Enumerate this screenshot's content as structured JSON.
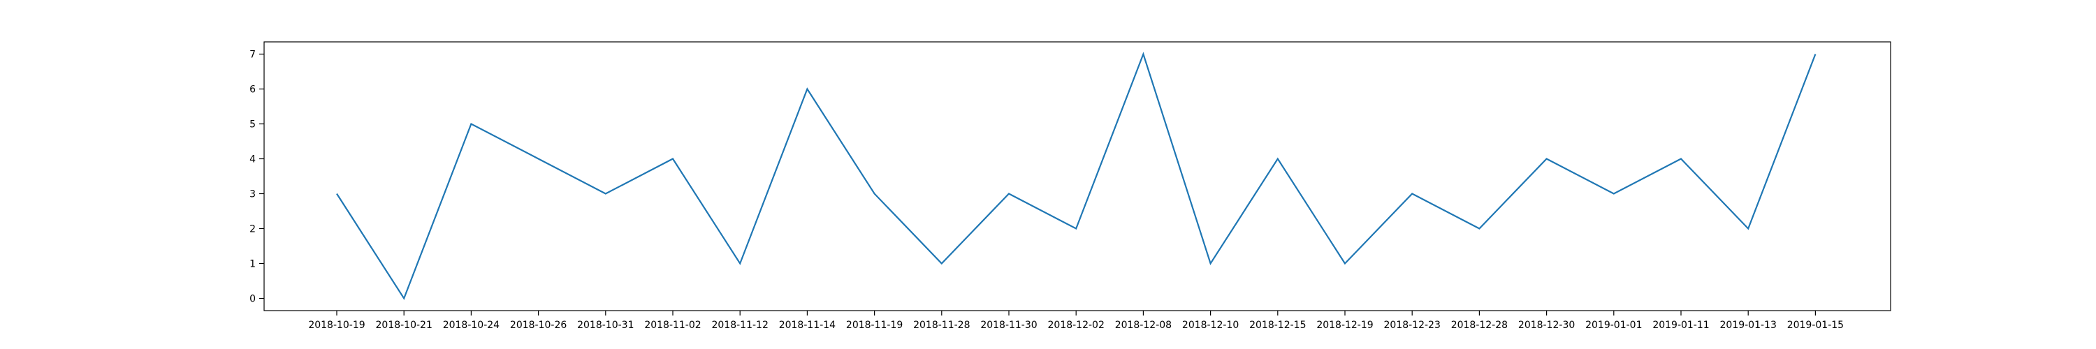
{
  "chart_data": {
    "type": "line",
    "categories": [
      "2018-10-19",
      "2018-10-21",
      "2018-10-24",
      "2018-10-26",
      "2018-10-31",
      "2018-11-02",
      "2018-11-12",
      "2018-11-14",
      "2018-11-19",
      "2018-11-28",
      "2018-11-30",
      "2018-12-02",
      "2018-12-08",
      "2018-12-10",
      "2018-12-15",
      "2018-12-19",
      "2018-12-23",
      "2018-12-28",
      "2018-12-30",
      "2019-01-01",
      "2019-01-11",
      "2019-01-13",
      "2019-01-15"
    ],
    "series": [
      {
        "values": [
          3,
          0,
          5,
          4,
          3,
          4,
          1,
          6,
          3,
          1,
          3,
          2,
          7,
          1,
          4,
          1,
          3,
          2,
          4,
          3,
          4,
          2,
          7
        ],
        "color": "#1f77b4"
      }
    ],
    "yticks": [
      0,
      1,
      2,
      3,
      4,
      5,
      6,
      7
    ],
    "ylim": [
      -0.35,
      7.35
    ],
    "title": "",
    "xlabel": "",
    "ylabel": "",
    "grid": false,
    "legend": false
  }
}
